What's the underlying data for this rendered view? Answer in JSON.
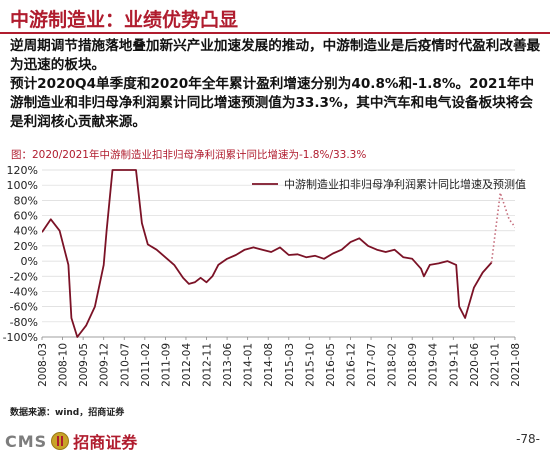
{
  "header": {
    "title": "中游制造业：业绩优势凸显"
  },
  "body": {
    "paragraphs": [
      "逆周期调节措施落地叠加新兴产业加速发展的推动，中游制造业是后疫情时代盈利改善最为迅速的板块。",
      "预计2020Q4单季度和2020年全年累计盈利增速分别为40.8%和-1.8%。2021年中游制造业和非归母净利润累计同比增速预测值为33.3%，其中汽车和电气设备板块将会是利润核心贡献来源。"
    ]
  },
  "chart_caption": "图：2020/2021年中游制造业扣非归母净利润累计同比增速为-1.8%/33.3%",
  "chart_data": {
    "type": "line",
    "title": "",
    "xlabel": "",
    "ylabel": "",
    "legend": "中游制造业扣非归母净利润累计同比增速及预测值",
    "legend_position": "top-right",
    "ylim": [
      -100,
      120
    ],
    "y_ticks": [
      "120%",
      "100%",
      "80%",
      "60%",
      "40%",
      "20%",
      "0%",
      "-20%",
      "-40%",
      "-60%",
      "-80%",
      "-100%"
    ],
    "x_ticks": [
      "2008-03",
      "2008-10",
      "2009-05",
      "2009-12",
      "2010-07",
      "2011-02",
      "2011-09",
      "2012-04",
      "2012-11",
      "2013-06",
      "2014-01",
      "2014-08",
      "2015-03",
      "2015-10",
      "2016-05",
      "2016-12",
      "2017-07",
      "2018-02",
      "2018-09",
      "2019-04",
      "2019-11",
      "2020-06",
      "2021-01",
      "2021-08"
    ],
    "series": [
      {
        "style": "solid",
        "color": "#7b1226",
        "points": [
          [
            "2008-03",
            38
          ],
          [
            "2008-06",
            55
          ],
          [
            "2008-09",
            40
          ],
          [
            "2008-12",
            -5
          ],
          [
            "2009-01",
            -75
          ],
          [
            "2009-03",
            -100
          ],
          [
            "2009-06",
            -85
          ],
          [
            "2009-09",
            -60
          ],
          [
            "2009-12",
            -5
          ],
          [
            "2010-01",
            40
          ],
          [
            "2010-03",
            120
          ],
          [
            "2010-06",
            120
          ],
          [
            "2010-09",
            120
          ],
          [
            "2010-11",
            120
          ],
          [
            "2011-01",
            50
          ],
          [
            "2011-03",
            22
          ],
          [
            "2011-06",
            15
          ],
          [
            "2011-09",
            5
          ],
          [
            "2011-12",
            -5
          ],
          [
            "2012-03",
            -22
          ],
          [
            "2012-05",
            -30
          ],
          [
            "2012-07",
            -28
          ],
          [
            "2012-09",
            -22
          ],
          [
            "2012-11",
            -28
          ],
          [
            "2013-01",
            -20
          ],
          [
            "2013-03",
            -5
          ],
          [
            "2013-06",
            3
          ],
          [
            "2013-09",
            8
          ],
          [
            "2013-12",
            15
          ],
          [
            "2014-03",
            18
          ],
          [
            "2014-06",
            15
          ],
          [
            "2014-09",
            12
          ],
          [
            "2014-12",
            18
          ],
          [
            "2015-03",
            8
          ],
          [
            "2015-06",
            9
          ],
          [
            "2015-09",
            5
          ],
          [
            "2015-12",
            7
          ],
          [
            "2016-03",
            3
          ],
          [
            "2016-06",
            10
          ],
          [
            "2016-09",
            15
          ],
          [
            "2016-12",
            25
          ],
          [
            "2017-03",
            30
          ],
          [
            "2017-06",
            20
          ],
          [
            "2017-09",
            15
          ],
          [
            "2017-12",
            12
          ],
          [
            "2018-03",
            15
          ],
          [
            "2018-06",
            5
          ],
          [
            "2018-09",
            3
          ],
          [
            "2018-12",
            -10
          ],
          [
            "2019-01",
            -20
          ],
          [
            "2019-03",
            -5
          ],
          [
            "2019-06",
            -3
          ],
          [
            "2019-09",
            0
          ],
          [
            "2019-12",
            -5
          ],
          [
            "2020-01",
            -60
          ],
          [
            "2020-03",
            -75
          ],
          [
            "2020-06",
            -35
          ],
          [
            "2020-09",
            -15
          ],
          [
            "2020-12",
            -2
          ]
        ]
      },
      {
        "style": "dotted",
        "color": "#c46b7a",
        "points": [
          [
            "2020-12",
            -2
          ],
          [
            "2021-03",
            90
          ],
          [
            "2021-06",
            55
          ],
          [
            "2021-09",
            40
          ],
          [
            "2021-12",
            33
          ]
        ]
      }
    ]
  },
  "source": "数据来源：wind，招商证券",
  "footer": {
    "logo_cms": "CMS",
    "logo_cn": "招商证券",
    "page_number": "-78-"
  },
  "colors": {
    "brand_red": "#b01c2e",
    "series_line": "#7b1226",
    "forecast_line": "#c46b7a"
  }
}
